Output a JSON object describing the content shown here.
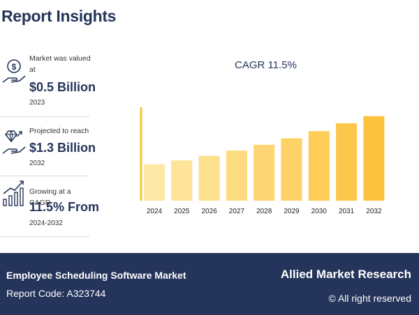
{
  "header": {
    "title": "Report Insights"
  },
  "stats": [
    {
      "label": "Market was valued at",
      "value": "$0.5 Billion",
      "year": "2023",
      "icon": "money-hand-icon"
    },
    {
      "label": "Projected to reach",
      "value": "$1.3 Billion",
      "year": "2032",
      "icon": "diamond-hand-icon"
    },
    {
      "label": "Growing at a CAGR",
      "value": "11.5% From",
      "year": "2024-2032",
      "icon": "growth-chart-icon"
    }
  ],
  "chart_data": {
    "type": "bar",
    "title": "CAGR 11.5%",
    "categories": [
      "2024",
      "2025",
      "2026",
      "2027",
      "2028",
      "2029",
      "2030",
      "2031",
      "2032"
    ],
    "values": [
      0.56,
      0.62,
      0.69,
      0.77,
      0.86,
      0.96,
      1.07,
      1.19,
      1.3
    ],
    "xlabel": "",
    "ylabel": "",
    "ylim": [
      0,
      1.5
    ],
    "grid": false,
    "colors": [
      "#fde8a6",
      "#fde49a",
      "#fde08d",
      "#fddb80",
      "#fdd673",
      "#fdd166",
      "#fdcc59",
      "#fdc74c",
      "#fdc23d"
    ],
    "axis_color": "#f7c52c"
  },
  "footer": {
    "title": "Employee Scheduling Software Market",
    "report_code": "Report Code: A323744",
    "brand": "Allied Market Research",
    "rights": "© All right reserved"
  }
}
